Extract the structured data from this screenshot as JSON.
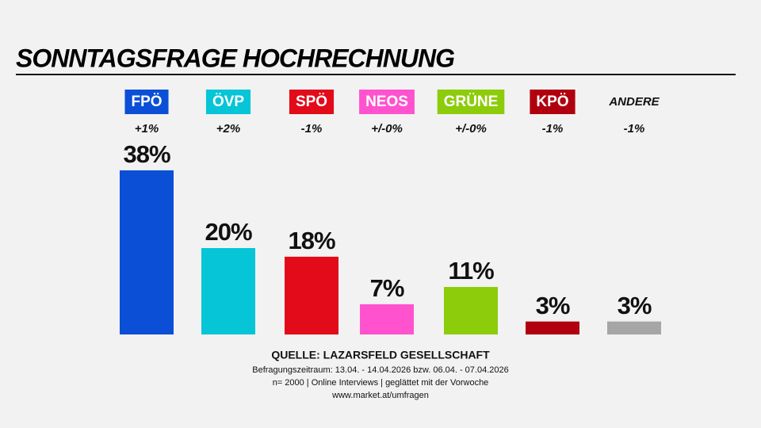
{
  "chart_data": {
    "type": "bar",
    "title": "SONNTAGSFRAGE HOCHRECHNUNG",
    "categories": [
      "FPÖ",
      "ÖVP",
      "SPÖ",
      "NEOS",
      "GRÜNE",
      "KPÖ",
      "ANDERE"
    ],
    "changes": [
      "+1%",
      "+2%",
      "-1%",
      "+/-0%",
      "+/-0%",
      "-1%",
      "-1%"
    ],
    "values": [
      38,
      20,
      18,
      7,
      11,
      3,
      3
    ],
    "value_labels": [
      "38%",
      "20%",
      "18%",
      "7%",
      "11%",
      "3%",
      "3%"
    ],
    "colors": [
      "#0a4fd6",
      "#05c5d6",
      "#e30a1a",
      "#ff52cf",
      "#8ccc0a",
      "#b0000f",
      "#a6a6a6"
    ],
    "label_boxed": [
      true,
      true,
      true,
      true,
      true,
      true,
      false
    ],
    "source": "QUELLE: LAZARSFELD GESELLSCHAFT",
    "notes": [
      "Befragungszeitraum: 13.04. - 14.04.2026 bzw. 06.04. - 07.04.2026",
      "n= 2000 | Online Interviews | geglättet mit der Vorwoche",
      "www.market.at/umfragen"
    ]
  }
}
